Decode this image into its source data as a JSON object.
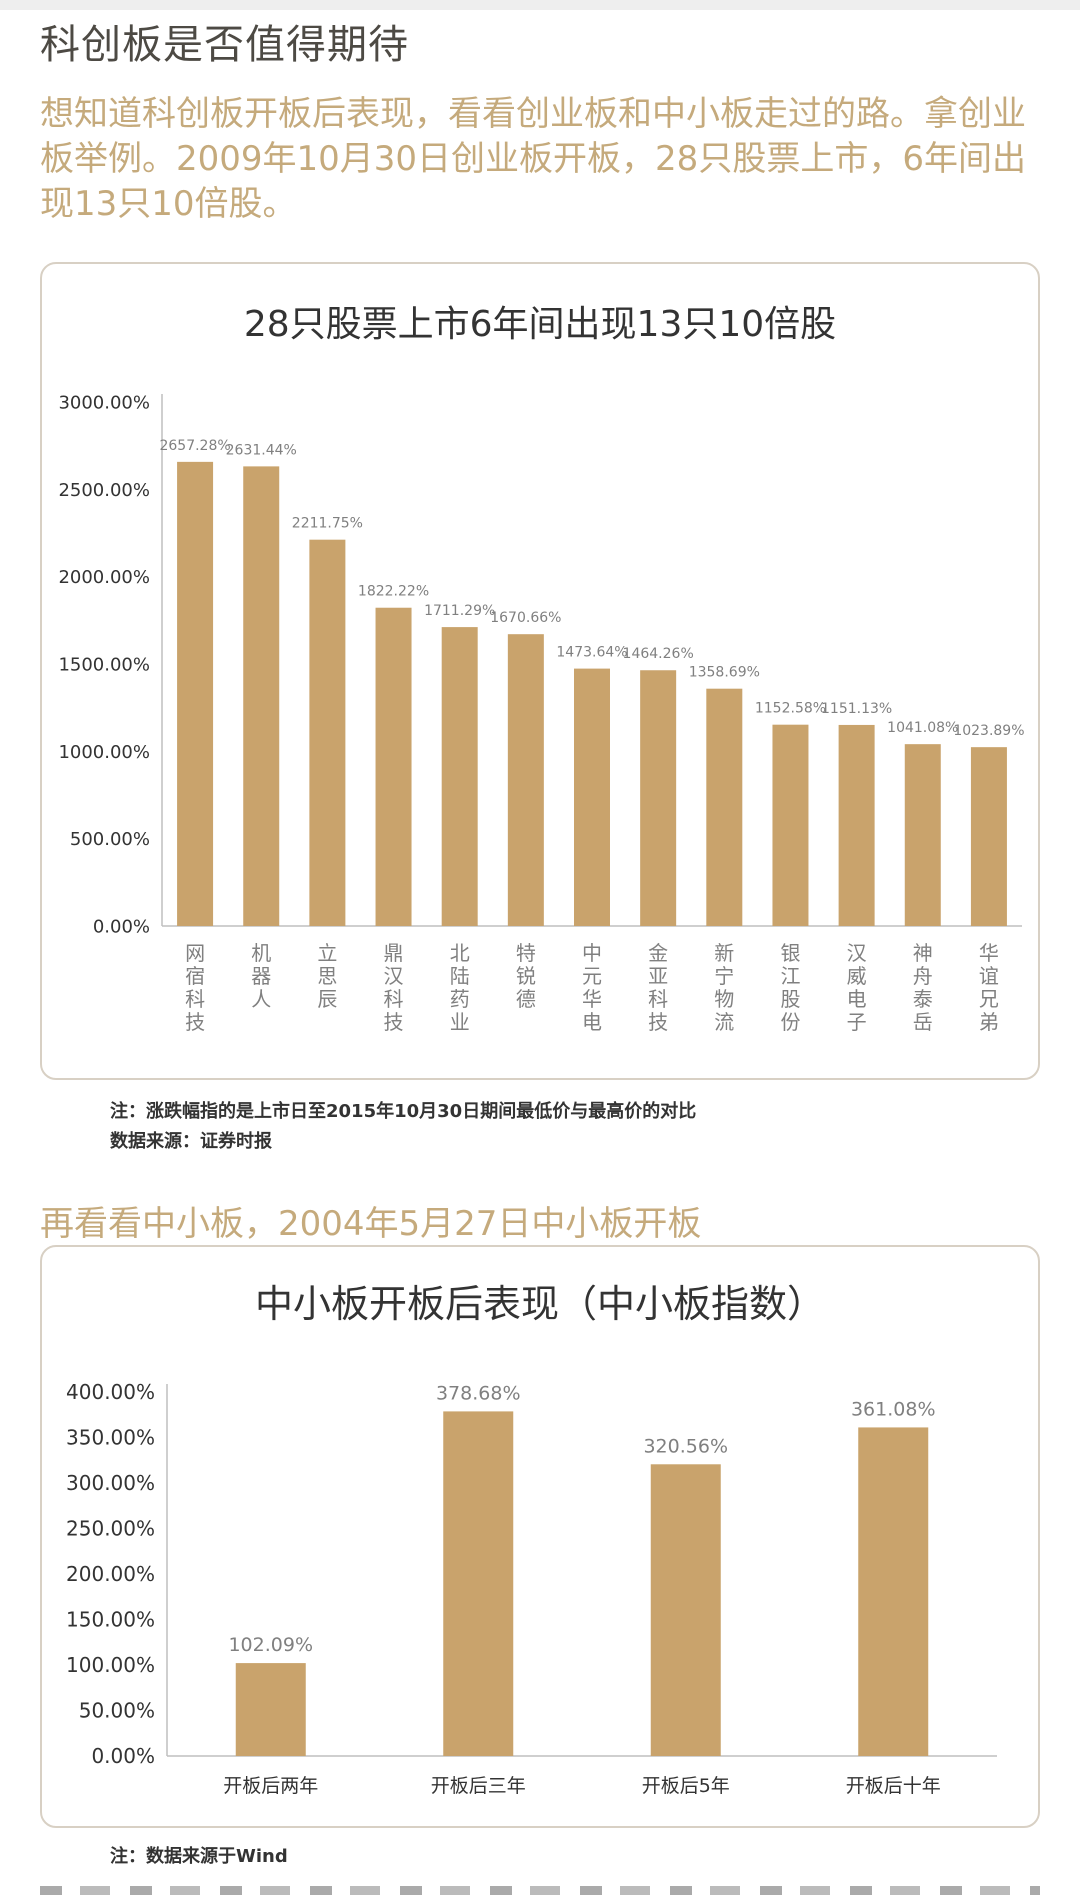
{
  "page": {
    "heading": "科创板是否值得期待",
    "intro": "想知道科创板开板后表现，看看创业板和中小板走过的路。拿创业板举例。2009年10月30日创业板开板，28只股票上市，6年间出现13只10倍股。",
    "note1_line1": "注：涨跌幅指的是上市日至2015年10月30日期间最低价与最高价的对比",
    "note1_line2": "数据来源：证券时报",
    "subheading": "再看看中小板，2004年5月27日中小板开板",
    "note2": "注：数据来源于Wind"
  },
  "colors": {
    "bar": "#c9a36c",
    "accent_text": "#c5aa7c",
    "title": "#333333",
    "label": "#808080",
    "axis_tick": "#333333"
  },
  "chart_data": [
    {
      "type": "bar",
      "title": "28只股票上市6年间出现13只10倍股",
      "categories": [
        "网宿科技",
        "机器人",
        "立思辰",
        "鼎汉科技",
        "北陆药业",
        "特锐德",
        "中元华电",
        "金亚科技",
        "新宁物流",
        "银江股份",
        "汉威电子",
        "神舟泰岳",
        "华谊兄弟"
      ],
      "values": [
        2657.28,
        2631.44,
        2211.75,
        1822.22,
        1711.29,
        1670.66,
        1473.64,
        1464.26,
        1358.69,
        1152.58,
        1151.13,
        1041.08,
        1023.89
      ],
      "value_labels": [
        "2657.28%",
        "2631.44%",
        "2211.75%",
        "1822.22%",
        "1711.29%",
        "1670.66%",
        "1473.64%",
        "1464.26%",
        "1358.69%",
        "1152.58%",
        "1151.13%",
        "1041.08%",
        "1023.89%"
      ],
      "y_ticks": [
        0,
        500,
        1000,
        1500,
        2000,
        2500,
        3000
      ],
      "y_tick_labels": [
        "0.00%",
        "500.00%",
        "1000.00%",
        "1500.00%",
        "2000.00%",
        "2500.00%",
        "3000.00%"
      ],
      "ylim": [
        0,
        3000
      ],
      "xlabel": "",
      "ylabel": "",
      "grid": false
    },
    {
      "type": "bar",
      "title": "中小板开板后表现（中小板指数）",
      "categories": [
        "开板后两年",
        "开板后三年",
        "开板后5年",
        "开板后十年"
      ],
      "values": [
        102.09,
        378.68,
        320.56,
        361.08
      ],
      "value_labels": [
        "102.09%",
        "378.68%",
        "320.56%",
        "361.08%"
      ],
      "y_ticks": [
        0,
        50,
        100,
        150,
        200,
        250,
        300,
        350,
        400
      ],
      "y_tick_labels": [
        "0.00%",
        "50.00%",
        "100.00%",
        "150.00%",
        "200.00%",
        "250.00%",
        "300.00%",
        "350.00%",
        "400.00%"
      ],
      "ylim": [
        0,
        400
      ],
      "xlabel": "",
      "ylabel": "",
      "grid": false
    }
  ]
}
